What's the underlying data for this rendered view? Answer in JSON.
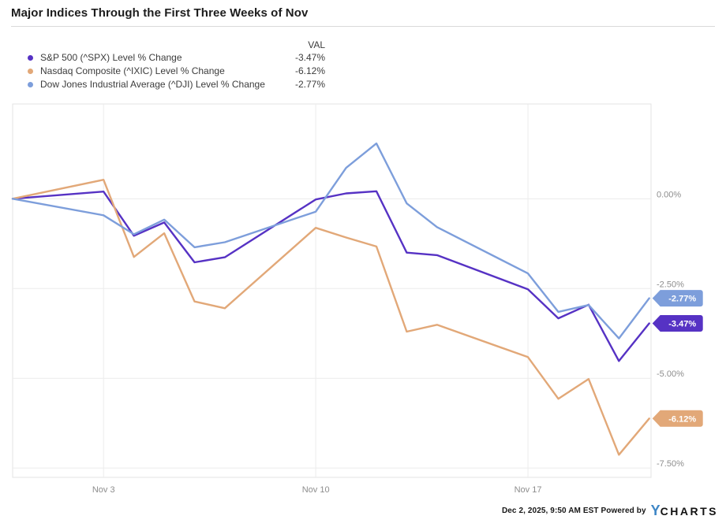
{
  "title": "Major Indices Through the First Three Weeks of Nov",
  "legend": {
    "val_header": "VAL",
    "items": [
      {
        "label": "S&P 500 (^SPX) Level % Change",
        "value": "-3.47%",
        "color": "#5632c4"
      },
      {
        "label": "Nasdaq Composite (^IXIC) Level % Change",
        "value": "-6.12%",
        "color": "#e2a878"
      },
      {
        "label": "Dow Jones Industrial Average (^DJI) Level % Change",
        "value": "-2.77%",
        "color": "#7d9edb"
      }
    ]
  },
  "footer": {
    "timestamp": "Dec 2, 2025, 9:50 AM EST",
    "powered_by": "Powered by",
    "logo_y": "Y",
    "logo_charts": "CHARTS"
  },
  "chart_data": {
    "type": "line",
    "x": [
      "Oct 31",
      "Nov 3",
      "Nov 4",
      "Nov 5",
      "Nov 6",
      "Nov 7",
      "Nov 10",
      "Nov 11",
      "Nov 12",
      "Nov 13",
      "Nov 14",
      "Nov 17",
      "Nov 18",
      "Nov 19",
      "Nov 20",
      "Nov 21"
    ],
    "x_offsets": [
      0,
      3,
      4,
      5,
      6,
      7,
      10,
      11,
      12,
      13,
      14,
      17,
      18,
      19,
      20,
      21
    ],
    "xlim": [
      0,
      21.06
    ],
    "ylim": [
      2.64,
      -7.76
    ],
    "grid": true,
    "y_axis_side": "right",
    "legend_position": "top-left",
    "y_ticks": [
      {
        "label": "0.00%",
        "value": 0
      },
      {
        "label": "-2.50%",
        "value": -2.5
      },
      {
        "label": "-5.00%",
        "value": -5
      },
      {
        "label": "-7.50%",
        "value": -7.5
      }
    ],
    "x_ticks": [
      {
        "label": "Nov 3",
        "offset": 3
      },
      {
        "label": "Nov 10",
        "offset": 10
      },
      {
        "label": "Nov 17",
        "offset": 17
      }
    ],
    "series": [
      {
        "id": "spx",
        "name": "S&P 500 (^SPX) Level % Change",
        "color": "#5632c4",
        "end_label": "-3.47%",
        "values": [
          0,
          0.2,
          -1.03,
          -0.66,
          -1.77,
          -1.63,
          -0.02,
          0.15,
          0.21,
          -1.5,
          -1.57,
          -2.52,
          -3.33,
          -2.95,
          -4.52,
          -3.47
        ]
      },
      {
        "id": "ixic",
        "name": "Nasdaq Composite (^IXIC) Level % Change",
        "color": "#e2a878",
        "end_label": "-6.12%",
        "values": [
          0,
          0.53,
          -1.62,
          -0.96,
          -2.86,
          -3.05,
          -0.81,
          -1.08,
          -1.33,
          -3.7,
          -3.51,
          -4.41,
          -5.57,
          -5.02,
          -7.13,
          -6.12
        ]
      },
      {
        "id": "dji",
        "name": "Dow Jones Industrial Average (^DJI) Level % Change",
        "color": "#7d9edb",
        "end_label": "-2.77%",
        "values": [
          0,
          -0.46,
          -0.99,
          -0.58,
          -1.35,
          -1.21,
          -0.36,
          0.86,
          1.54,
          -0.13,
          -0.79,
          -2.08,
          -3.15,
          -2.96,
          -3.89,
          -2.77
        ]
      }
    ]
  }
}
